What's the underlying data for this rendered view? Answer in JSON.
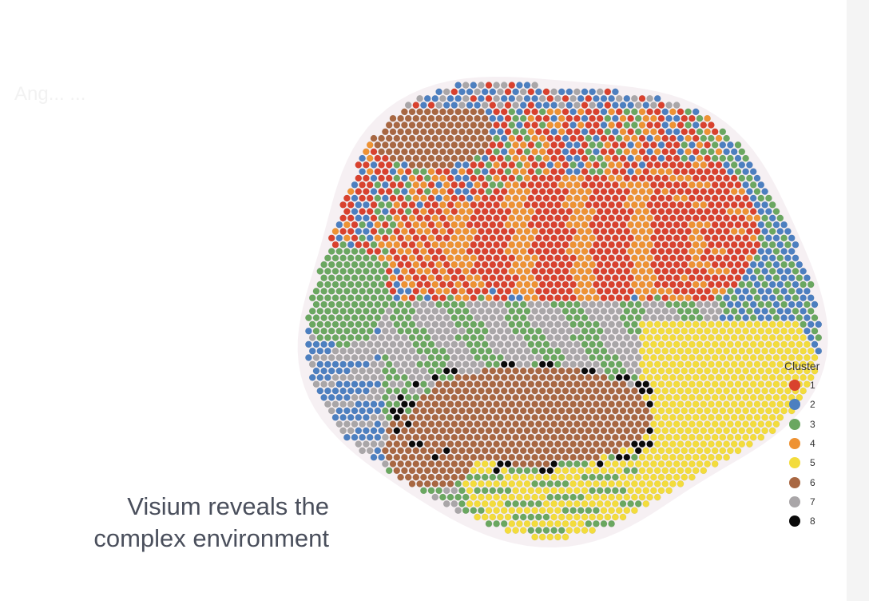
{
  "caption": {
    "line1": "Visium reveals the",
    "line2": "complex environment"
  },
  "background_text": "Ang... ...",
  "legend": {
    "title": "Cluster",
    "items": [
      {
        "label": "1",
        "color": "#d9412e"
      },
      {
        "label": "2",
        "color": "#4c7fc0"
      },
      {
        "label": "3",
        "color": "#6aa760"
      },
      {
        "label": "4",
        "color": "#ee9233"
      },
      {
        "label": "5",
        "color": "#f3dc3c"
      },
      {
        "label": "6",
        "color": "#a86742"
      },
      {
        "label": "7",
        "color": "#a9a6a8"
      },
      {
        "label": "8",
        "color": "#0a0a0a"
      }
    ]
  }
}
